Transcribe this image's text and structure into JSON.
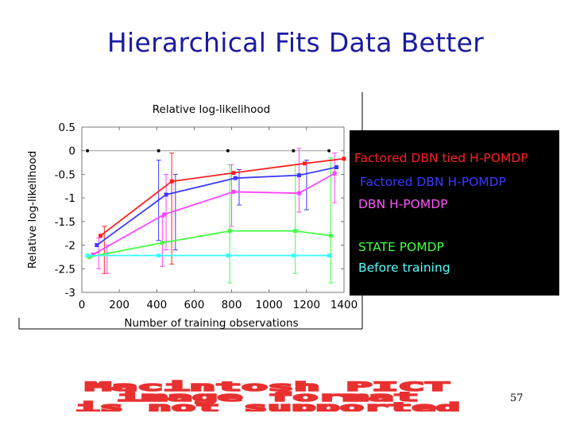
{
  "slide": {
    "title": "Hierarchical Fits Data Better",
    "page_number": "57"
  },
  "chart_data": {
    "type": "line",
    "title": "Relative log-likelihood",
    "xlabel": "Number of training observations",
    "ylabel": "Relative log-likelihood",
    "xlim": [
      0,
      1400
    ],
    "ylim": [
      -3,
      0.5
    ],
    "xticks": [
      0,
      200,
      400,
      600,
      800,
      1000,
      1200,
      1400
    ],
    "yticks": [
      0.5,
      0,
      -0.5,
      -1,
      -1.5,
      -2,
      -2.5,
      -3
    ],
    "grid": false,
    "legend_placement": "right",
    "series": [
      {
        "name": "Factored DBN tied H-POMDP",
        "color": "#ff2020",
        "x": [
          100,
          480,
          810,
          1190,
          1400
        ],
        "y": [
          -1.8,
          -0.65,
          -0.47,
          -0.27,
          -0.17
        ]
      },
      {
        "name": "Factored DBN H-POMDP",
        "color": "#3a3aff",
        "x": [
          80,
          450,
          820,
          1160,
          1360
        ],
        "y": [
          -2.0,
          -0.93,
          -0.58,
          -0.52,
          -0.35
        ]
      },
      {
        "name": "DBN H-POMDP",
        "color": "#ff44ff",
        "x": [
          60,
          440,
          810,
          1160,
          1350
        ],
        "y": [
          -2.2,
          -1.35,
          -0.87,
          -0.9,
          -0.48
        ]
      },
      {
        "name": "STATE POMDP",
        "color": "#44ff44",
        "x": [
          40,
          430,
          790,
          1140,
          1330
        ],
        "y": [
          -2.25,
          -1.95,
          -1.7,
          -1.7,
          -1.8
        ]
      },
      {
        "name": "Before training",
        "color": "#33ffff",
        "x": [
          30,
          410,
          780,
          1130,
          1320
        ],
        "y": [
          -2.22,
          -2.22,
          -2.22,
          -2.22,
          -2.22
        ]
      },
      {
        "name": "",
        "color": "#000000",
        "x": [
          30,
          410,
          780,
          1130,
          1320
        ],
        "y": [
          0,
          0,
          0,
          0,
          0
        ]
      }
    ]
  },
  "legend": {
    "entries": [
      {
        "label": "Factored DBN tied H-POMDP",
        "color": "#ff2020"
      },
      {
        "label": "Factored DBN H-POMDP",
        "color": "#3a3aff"
      },
      {
        "label": "DBN H-POMDP",
        "color": "#ff55ff"
      },
      {
        "label": "STATE POMDP",
        "color": "#44ff44"
      },
      {
        "label": "Before training",
        "color": "#55ffff"
      }
    ]
  },
  "pict_banner": {
    "lines": [
      "Macintosh PICT",
      "image format",
      "is not supported"
    ],
    "color": "#e83030"
  }
}
